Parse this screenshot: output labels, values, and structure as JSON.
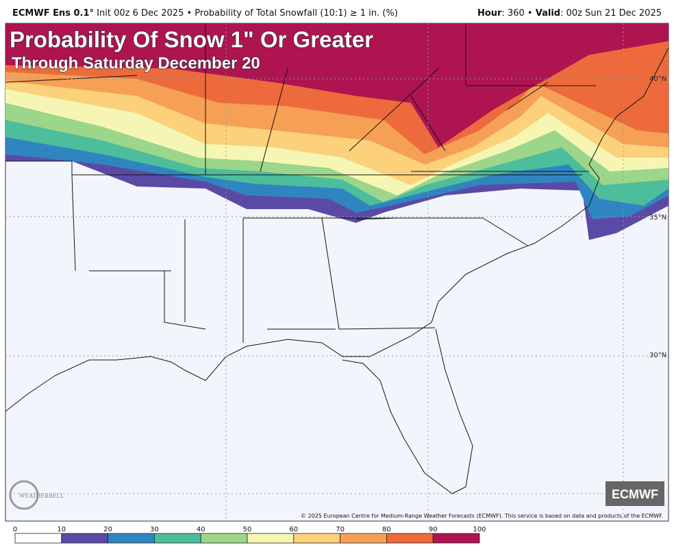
{
  "header": {
    "model": "ECMWF Ens 0.1°",
    "description": " Init 00z 6 Dec 2025 • Probability of Total Snowfall (10:1) ≥ 1 in. (%)",
    "hour_label": "Hour",
    "hour_value": ": 360 • ",
    "valid_label": "Valid",
    "valid_value": ": 00z Sun 21 Dec 2025"
  },
  "overlay": {
    "title": "Probability Of Snow 1\" Or Greater",
    "subtitle": "Through Saturday December 20"
  },
  "latitudes": [
    "40°N",
    "35°N",
    "30°N"
  ],
  "watermark": "WEATHERBELL",
  "badge": "ECMWF",
  "credit": "© 2025 European Centre for Medium-Range Weather Forecasts (ECMWF). This service is based on data and products of the ECMWF.",
  "colorbar": {
    "ticks": [
      0,
      10,
      20,
      30,
      40,
      50,
      60,
      70,
      80,
      90,
      100
    ],
    "colors": [
      "#ffffff",
      "#5a4aa6",
      "#2f85c0",
      "#4dbd9b",
      "#9cd68b",
      "#f6f6b4",
      "#fbd17b",
      "#f6a055",
      "#ec6a3c",
      "#ad1450"
    ]
  }
}
